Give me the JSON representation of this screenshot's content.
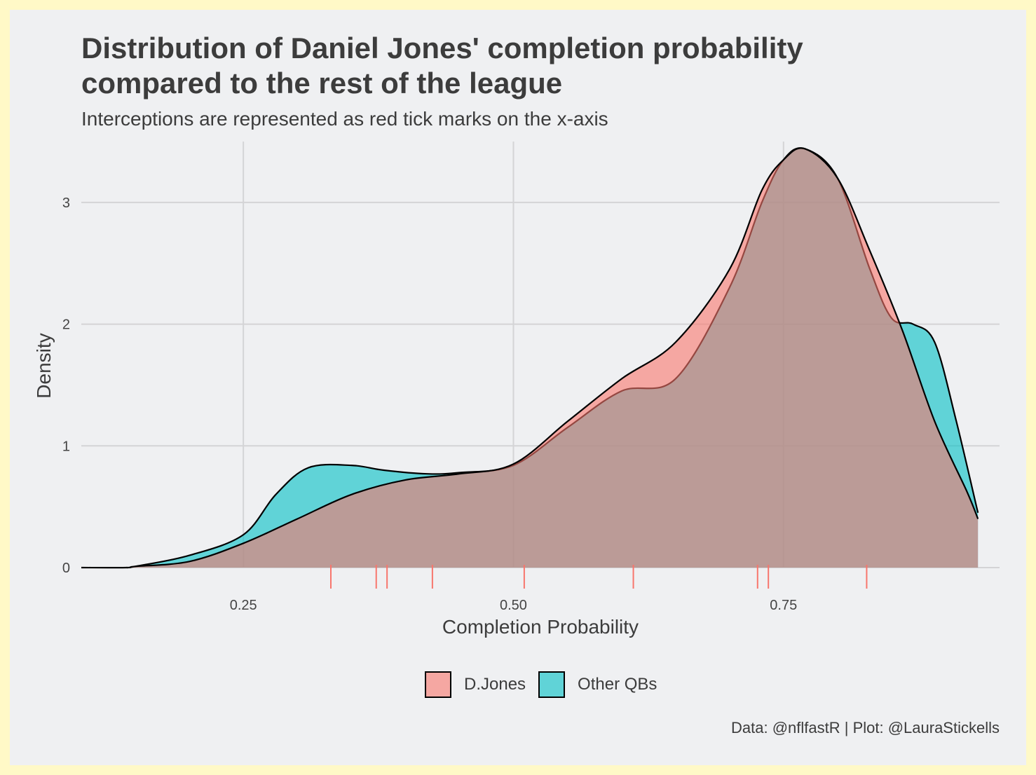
{
  "chart_data": {
    "type": "area",
    "subtype": "density",
    "title": "Distribution of Daniel Jones' completion probability compared to the rest of the league",
    "title_lines": [
      "Distribution of Daniel Jones' completion probability",
      "compared to the rest of the league"
    ],
    "subtitle": "Interceptions are represented as red tick marks on the x-axis",
    "xlabel": "Completion Probability",
    "ylabel": "Density",
    "xlim": [
      0.1,
      0.95
    ],
    "ylim": [
      0,
      3.5
    ],
    "x_ticks": [
      0.25,
      0.5,
      0.75
    ],
    "x_tick_labels": [
      "0.25",
      "0.50",
      "0.75"
    ],
    "y_ticks": [
      0,
      1,
      2,
      3
    ],
    "y_tick_labels": [
      "0",
      "1",
      "2",
      "3"
    ],
    "grid": true,
    "legend_position": "bottom",
    "series": [
      {
        "name": "D.Jones",
        "color": "#f8766d",
        "x": [
          0.1,
          0.142,
          0.15,
          0.2,
          0.25,
          0.3,
          0.35,
          0.4,
          0.45,
          0.5,
          0.55,
          0.6,
          0.65,
          0.7,
          0.73,
          0.75,
          0.77,
          0.8,
          0.83,
          0.86,
          0.89,
          0.92,
          0.93
        ],
        "values": [
          0.0,
          0.0,
          0.01,
          0.05,
          0.2,
          0.4,
          0.6,
          0.72,
          0.77,
          0.85,
          1.2,
          1.55,
          1.85,
          2.45,
          3.1,
          3.35,
          3.44,
          3.2,
          2.6,
          1.95,
          1.2,
          0.62,
          0.4
        ]
      },
      {
        "name": "Other QBs",
        "color": "#00bfc4",
        "x": [
          0.142,
          0.15,
          0.2,
          0.25,
          0.28,
          0.31,
          0.35,
          0.38,
          0.42,
          0.45,
          0.5,
          0.55,
          0.6,
          0.65,
          0.7,
          0.73,
          0.75,
          0.77,
          0.8,
          0.83,
          0.85,
          0.87,
          0.89,
          0.91,
          0.93
        ],
        "values": [
          0.0,
          0.01,
          0.1,
          0.27,
          0.6,
          0.82,
          0.84,
          0.8,
          0.77,
          0.78,
          0.84,
          1.15,
          1.45,
          1.55,
          2.3,
          3.0,
          3.35,
          3.44,
          3.2,
          2.45,
          2.05,
          2.0,
          1.85,
          1.2,
          0.45
        ]
      }
    ],
    "interceptions": {
      "color": "#f8766d",
      "x": [
        0.331,
        0.373,
        0.383,
        0.425,
        0.51,
        0.611,
        0.726,
        0.736,
        0.827
      ]
    },
    "caption": "Data: @nflfastR | Plot: @LauraStickells"
  }
}
